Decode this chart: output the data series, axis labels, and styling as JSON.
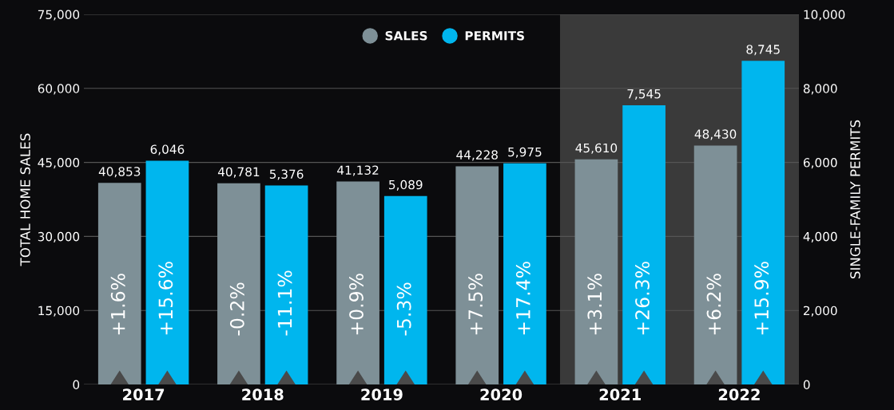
{
  "chart_data": {
    "type": "bar",
    "categories": [
      "2017",
      "2018",
      "2019",
      "2020",
      "2021",
      "2022"
    ],
    "series": [
      {
        "name": "SALES",
        "color": "#7e9097",
        "values": [
          40853,
          40781,
          41132,
          44228,
          45610,
          48430
        ],
        "value_labels": [
          "40,853",
          "40,781",
          "41,132",
          "44,228",
          "45,610",
          "48,430"
        ]
      },
      {
        "name": "PERMITS",
        "color": "#00b6ee",
        "axis": "y2",
        "values": [
          6046,
          5376,
          5089,
          5975,
          7545,
          8745
        ],
        "value_labels": [
          "6,046",
          "5,376",
          "5,089",
          "5,975",
          "7,545",
          "8,745"
        ]
      }
    ],
    "ylabel": "TOTAL HOME SALES",
    "y2label": "SINGLE-FAMILY PERMITS",
    "ylim": [
      0,
      75000
    ],
    "yticks": [
      0,
      {
        "value": 15000,
        "label": "15,000"
      },
      {
        "value": 30000,
        "label": "30,000"
      },
      {
        "value": 45000,
        "label": "45,000"
      },
      {
        "value": 60000,
        "label": "60,000"
      },
      {
        "value": 75000,
        "label": "75,000"
      }
    ],
    "y2lim": [
      0,
      10000
    ],
    "y2ticks": [
      0,
      {
        "value": 2000,
        "label": "2,000"
      },
      {
        "value": 4000,
        "label": "4,000"
      },
      {
        "value": 6000,
        "label": "6,000"
      },
      {
        "value": 8000,
        "label": "8,000"
      },
      {
        "value": 10000,
        "label": "10,000"
      }
    ],
    "grid": "y",
    "legend": "top",
    "bands": [
      {
        "axis": "x",
        "from": "2021",
        "to": "2022",
        "color": "#3a3a3a"
      }
    ],
    "annotations": [
      "+1.6%",
      "+15.6%",
      "-0.2%",
      "-11.1%",
      "+0.9%",
      "-5.3%",
      "+7.5%",
      "+17.4%",
      "+3.1%",
      "+26.3%",
      "+6.2%",
      "+15.9%"
    ]
  }
}
